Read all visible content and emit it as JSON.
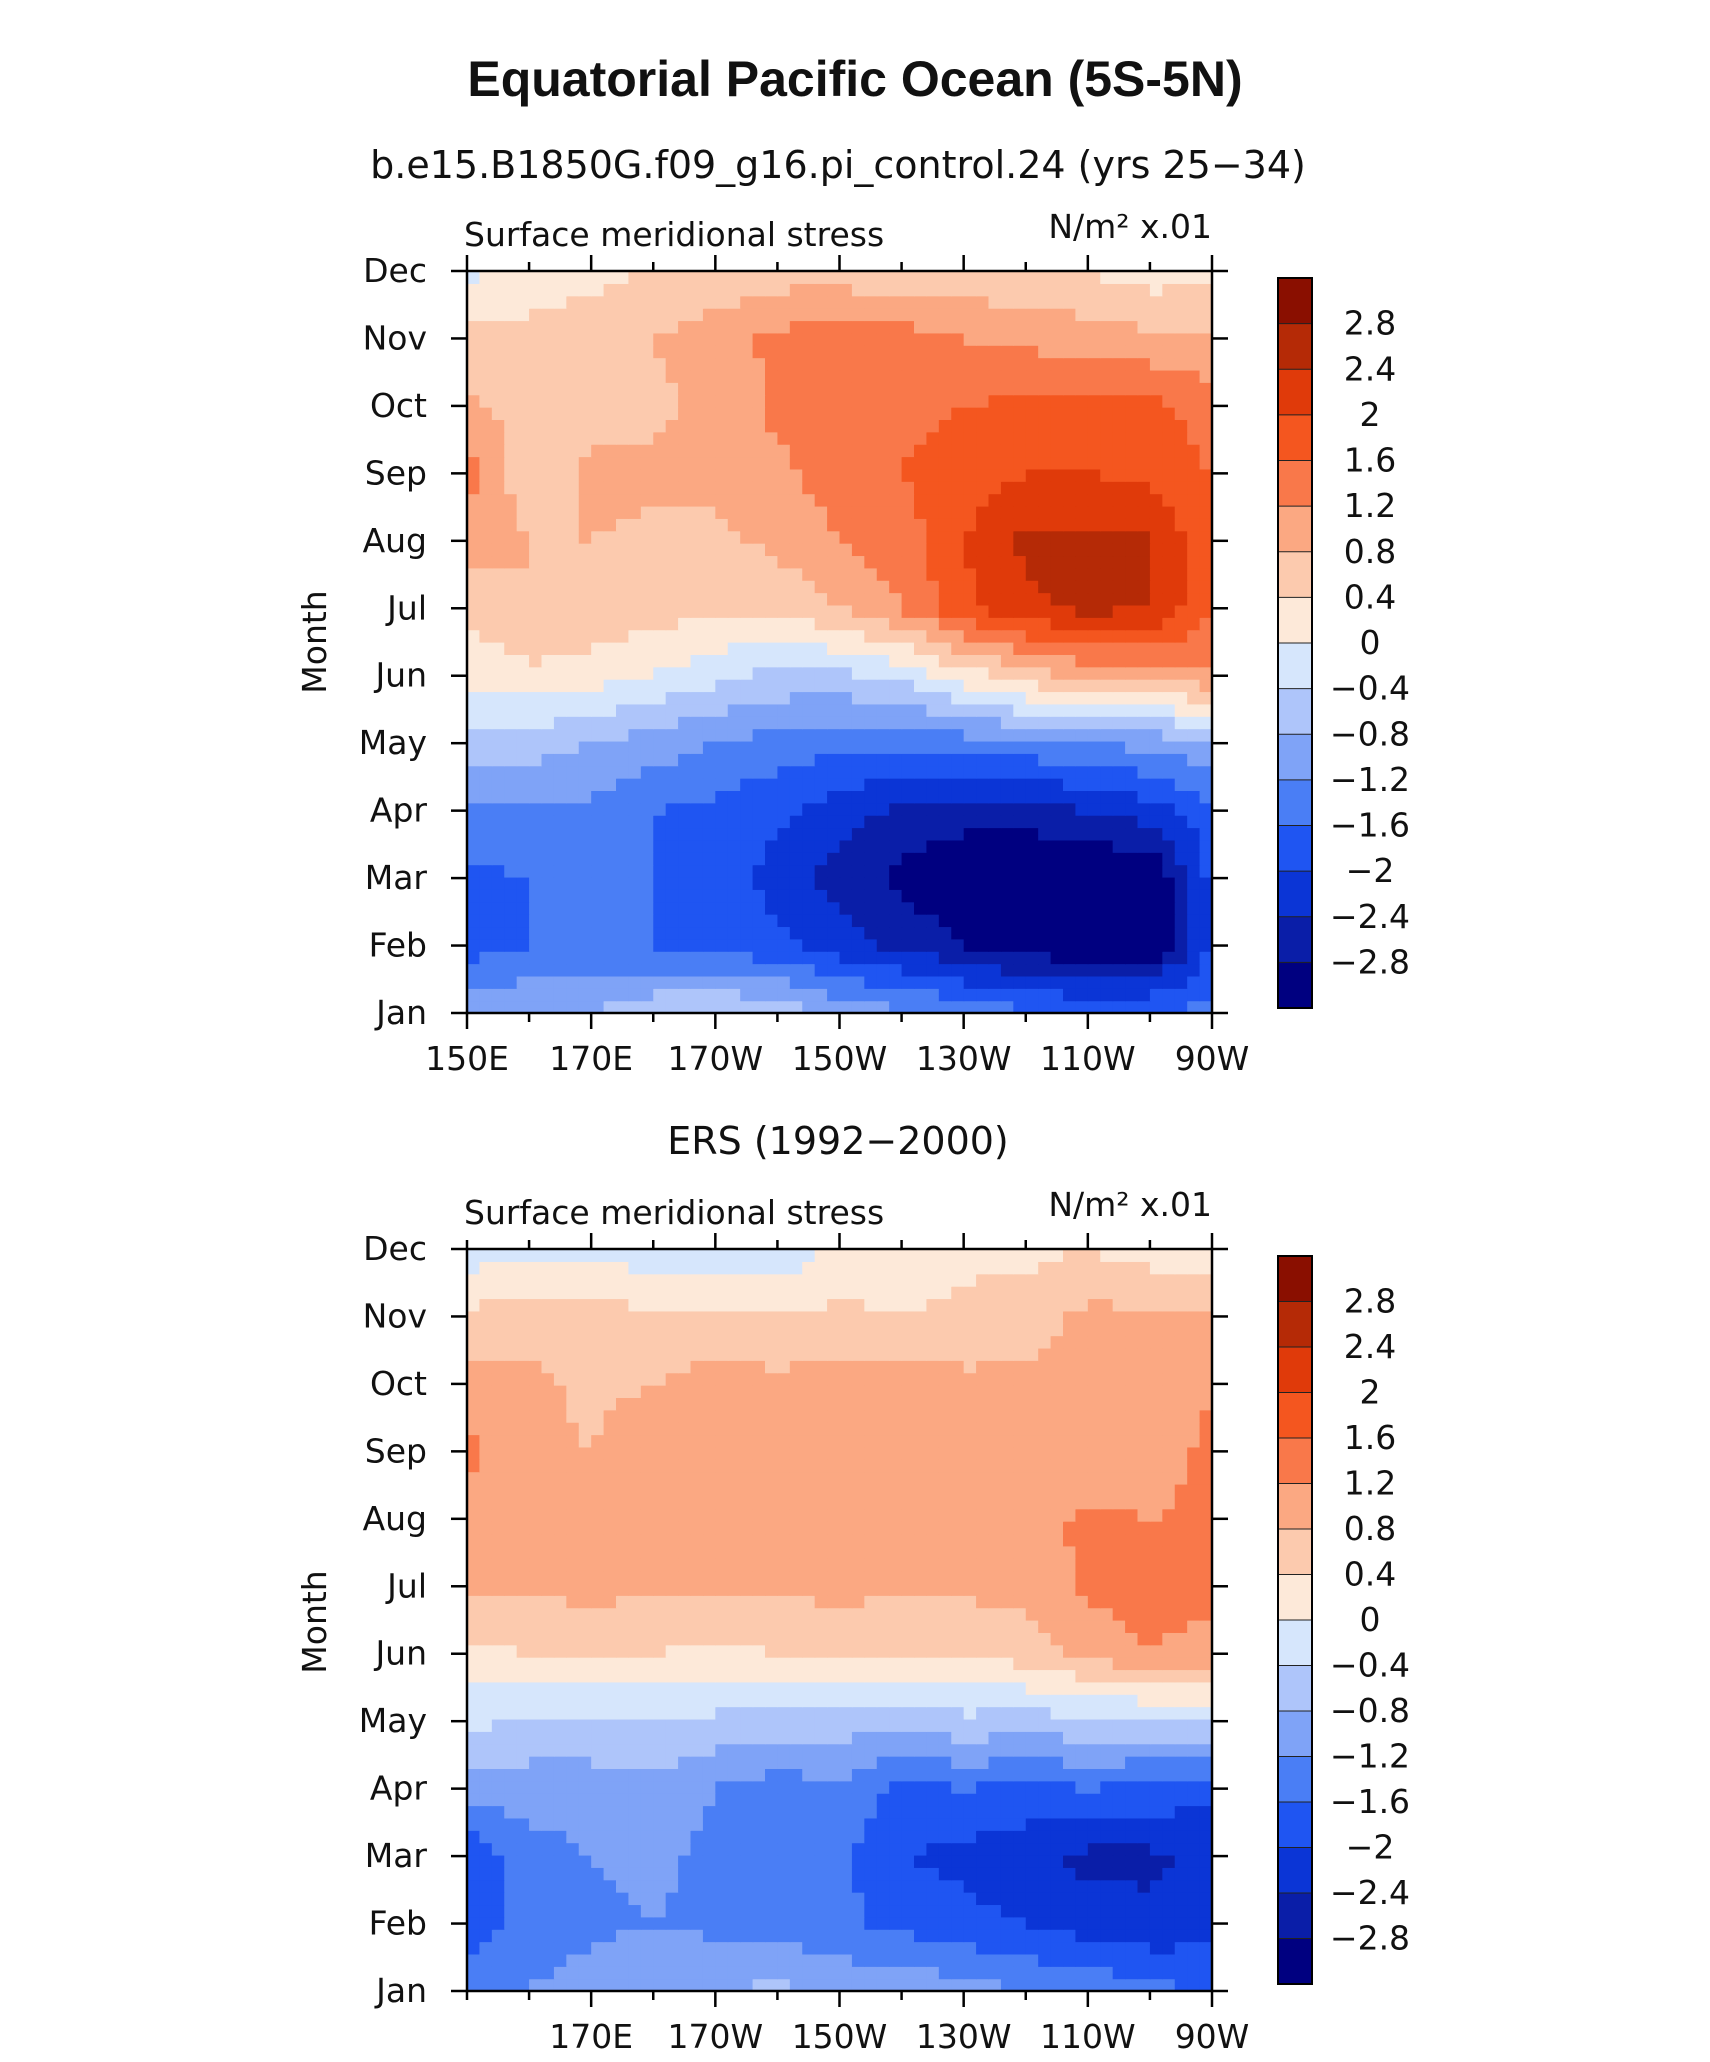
{
  "figure": {
    "title": "Equatorial Pacific Ocean (5S-5N)",
    "palette": [
      "#000080",
      "#0a1ea8",
      "#0b35d6",
      "#1f55f2",
      "#4a7ef5",
      "#7fa3f7",
      "#aec5fa",
      "#d6e6fc",
      "#fde9d9",
      "#fccaae",
      "#fba882",
      "#f9784a",
      "#f4561f",
      "#e03a0a",
      "#b52a06",
      "#8a0f00"
    ]
  },
  "chart_data": [
    {
      "type": "heatmap",
      "subtitle": "b.e15.B1850G.f09_g16.pi_control.24 (yrs 25−34)",
      "panel_left_label": "Surface meridional stress",
      "panel_right_label": "N/m² x.01",
      "ylabel": "Month",
      "x_range": [
        150,
        270
      ],
      "x_ticks": [
        150,
        170,
        190,
        210,
        230,
        250,
        270
      ],
      "x_tick_labels": [
        "150E",
        "170E",
        "170W",
        "150W",
        "130W",
        "110W",
        "90W"
      ],
      "y_ticks": [
        "Jan",
        "Feb",
        "Mar",
        "Apr",
        "May",
        "Jun",
        "Jul",
        "Aug",
        "Sep",
        "Oct",
        "Nov",
        "Dec"
      ],
      "colorbar_levels": [
        "2.8",
        "2.4",
        "2",
        "1.6",
        "1.2",
        "0.8",
        "0.4",
        "0",
        "−0.4",
        "−0.8",
        "−1.2",
        "−1.6",
        "−2",
        "−2.4",
        "−2.8"
      ],
      "lon": [
        150,
        160,
        170,
        180,
        190,
        200,
        210,
        220,
        230,
        240,
        250,
        260,
        270
      ],
      "values": [
        [
          -1.0,
          -0.8,
          -0.8,
          -0.5,
          -0.4,
          -0.5,
          -0.9,
          -1.1,
          -1.3,
          -1.5,
          -1.6,
          -1.6,
          -1.4
        ],
        [
          -1.8,
          -1.6,
          -1.6,
          -1.6,
          -1.7,
          -1.9,
          -2.2,
          -2.5,
          -2.8,
          -3.0,
          -3.2,
          -3.2,
          -2.0
        ],
        [
          -1.7,
          -1.6,
          -1.6,
          -1.6,
          -1.7,
          -2.2,
          -2.6,
          -2.9,
          -3.2,
          -3.3,
          -3.3,
          -3.2,
          -1.9
        ],
        [
          -1.3,
          -1.3,
          -1.3,
          -1.6,
          -1.7,
          -1.9,
          -2.2,
          -2.5,
          -2.6,
          -2.6,
          -2.4,
          -2.2,
          -1.7
        ],
        [
          -0.5,
          -0.6,
          -0.8,
          -1.0,
          -1.2,
          -1.4,
          -1.5,
          -1.5,
          -1.4,
          -1.3,
          -1.2,
          -1.1,
          -0.9
        ],
        [
          0.1,
          0.3,
          0.2,
          0.0,
          -0.3,
          -0.5,
          -0.5,
          -0.3,
          0.2,
          0.6,
          0.9,
          1.0,
          1.1
        ],
        [
          0.5,
          0.8,
          0.7,
          0.6,
          0.5,
          0.5,
          0.8,
          1.2,
          1.9,
          2.3,
          2.5,
          2.4,
          1.6
        ],
        [
          1.0,
          0.8,
          0.8,
          0.7,
          0.7,
          0.9,
          1.2,
          1.4,
          2.0,
          2.5,
          2.5,
          2.5,
          1.6
        ],
        [
          1.4,
          0.5,
          0.9,
          0.9,
          0.9,
          1.1,
          1.4,
          1.6,
          1.8,
          2.0,
          2.0,
          1.9,
          1.6
        ],
        [
          0.9,
          0.6,
          0.6,
          0.7,
          0.9,
          1.3,
          1.5,
          1.5,
          1.6,
          1.7,
          1.7,
          1.7,
          1.4
        ],
        [
          0.5,
          0.5,
          0.6,
          0.8,
          1.0,
          1.3,
          1.4,
          1.4,
          1.2,
          1.1,
          1.0,
          0.9,
          0.9
        ],
        [
          -0.1,
          0.2,
          0.3,
          0.4,
          0.5,
          0.6,
          0.6,
          0.5,
          0.5,
          0.5,
          0.4,
          0.2,
          0.3
        ]
      ]
    },
    {
      "type": "heatmap",
      "subtitle": "ERS (1992−2000)",
      "panel_left_label": "Surface meridional stress",
      "panel_right_label": "N/m² x.01",
      "ylabel": "Month",
      "x_range": [
        150,
        270
      ],
      "x_ticks": [
        170,
        190,
        210,
        230,
        250,
        270
      ],
      "x_tick_labels": [
        "170E",
        "170W",
        "150W",
        "130W",
        "110W",
        "90W"
      ],
      "y_ticks": [
        "Jan",
        "Feb",
        "Mar",
        "Apr",
        "May",
        "Jun",
        "Jul",
        "Aug",
        "Sep",
        "Oct",
        "Nov",
        "Dec"
      ],
      "colorbar_levels": [
        "2.8",
        "2.4",
        "2",
        "1.6",
        "1.2",
        "0.8",
        "0.4",
        "0",
        "−0.4",
        "−0.8",
        "−1.2",
        "−1.6",
        "−2",
        "−2.4",
        "−2.8"
      ],
      "lon": [
        150,
        160,
        170,
        180,
        190,
        200,
        210,
        220,
        230,
        240,
        250,
        260,
        270
      ],
      "values": [
        [
          -1.4,
          -1.2,
          -1.0,
          -0.8,
          -0.8,
          -0.7,
          -0.9,
          -0.9,
          -1.0,
          -1.2,
          -1.3,
          -1.5,
          -1.6
        ],
        [
          -1.8,
          -1.4,
          -1.3,
          -1.2,
          -1.3,
          -1.4,
          -1.5,
          -1.7,
          -1.9,
          -2.0,
          -2.2,
          -2.3,
          -2.2
        ],
        [
          -1.9,
          -1.4,
          -1.2,
          -1.1,
          -1.3,
          -1.4,
          -1.5,
          -2.0,
          -2.1,
          -2.3,
          -2.5,
          -2.5,
          -2.3
        ],
        [
          -1.0,
          -1.0,
          -1.0,
          -0.9,
          -1.2,
          -1.4,
          -1.3,
          -1.7,
          -1.6,
          -1.7,
          -1.6,
          -1.7,
          -1.9
        ],
        [
          -0.3,
          -0.5,
          -0.5,
          -0.4,
          -0.5,
          -0.6,
          -0.6,
          -0.7,
          -0.5,
          -0.6,
          -0.5,
          -0.5,
          -0.3
        ],
        [
          0.3,
          0.4,
          0.5,
          0.4,
          0.3,
          0.4,
          0.5,
          0.4,
          0.4,
          0.6,
          0.9,
          1.2,
          1.0
        ],
        [
          0.9,
          0.9,
          0.9,
          0.9,
          0.9,
          0.9,
          0.9,
          0.9,
          0.9,
          0.9,
          1.3,
          1.4,
          1.4
        ],
        [
          1.0,
          0.8,
          0.9,
          1.0,
          1.1,
          1.0,
          1.1,
          1.1,
          1.1,
          1.0,
          1.3,
          1.2,
          1.3
        ],
        [
          1.3,
          0.9,
          0.8,
          1.1,
          1.0,
          1.1,
          1.0,
          1.1,
          1.0,
          0.9,
          0.9,
          1.0,
          1.3
        ],
        [
          1.0,
          0.9,
          0.7,
          0.8,
          1.0,
          0.9,
          1.0,
          1.0,
          0.9,
          0.9,
          0.9,
          0.9,
          1.2
        ],
        [
          0.5,
          0.6,
          0.6,
          0.5,
          0.5,
          0.4,
          0.5,
          0.4,
          0.5,
          0.6,
          0.9,
          0.9,
          0.9
        ],
        [
          -0.2,
          -0.2,
          -0.1,
          -0.3,
          -0.4,
          -0.3,
          0.1,
          0.2,
          0.3,
          0.3,
          0.4,
          0.2,
          0.2
        ]
      ]
    }
  ]
}
